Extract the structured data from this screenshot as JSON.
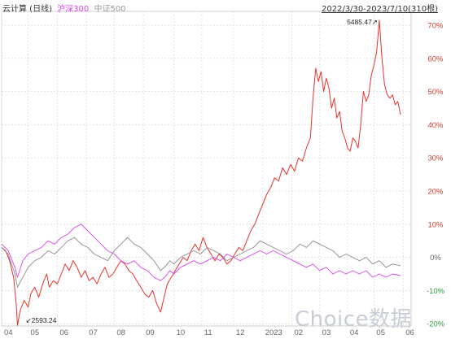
{
  "legend": {
    "stock": "云计算 (日线)",
    "series2": "沪深300",
    "series3": "中证500"
  },
  "date_range": "2022/3/30-2023/7/10(310根)",
  "watermark": "Choice数据",
  "colors": {
    "stock": "#e8332a",
    "hs300": "#d946ef",
    "zz500": "#8c8c8c",
    "grid": "#e3e3e3",
    "axis_text": "#666666",
    "positive_tick": "#d33c2d",
    "negative_tick": "#2f9b3a"
  },
  "chart_data": {
    "type": "line",
    "title": "",
    "xlabel": "",
    "ylabel": "",
    "x_ticks": [
      "04",
      "05",
      "06",
      "07",
      "08",
      "09",
      "10",
      "11",
      "12",
      "2023",
      "02",
      "03",
      "04",
      "05",
      "06"
    ],
    "y_ticks": [
      "70%",
      "60%",
      "50%",
      "40%",
      "30%",
      "20%",
      "10%",
      "0%",
      "-10%",
      "-20%"
    ],
    "ylim": [
      -20,
      72
    ],
    "x_unit": "trading day index (0-309)",
    "annotations": [
      {
        "label": "2593.24",
        "x": 12,
        "y": -20.5
      },
      {
        "label": "5485.47",
        "x": 285,
        "y": 71.5
      }
    ],
    "series": [
      {
        "key": "stock",
        "points": [
          [
            0,
            3
          ],
          [
            3,
            2
          ],
          [
            6,
            -1
          ],
          [
            9,
            -6
          ],
          [
            11,
            -14
          ],
          [
            12,
            -20.5
          ],
          [
            14,
            -16
          ],
          [
            17,
            -13
          ],
          [
            20,
            -15
          ],
          [
            22,
            -11
          ],
          [
            25,
            -9
          ],
          [
            28,
            -12
          ],
          [
            31,
            -8
          ],
          [
            34,
            -5
          ],
          [
            36,
            -9
          ],
          [
            39,
            -7
          ],
          [
            42,
            -8
          ],
          [
            45,
            -5
          ],
          [
            48,
            -2
          ],
          [
            51,
            -4
          ],
          [
            54,
            -1
          ],
          [
            57,
            -3
          ],
          [
            60,
            -6
          ],
          [
            63,
            -4
          ],
          [
            66,
            -7
          ],
          [
            69,
            -6
          ],
          [
            72,
            -8
          ],
          [
            75,
            -5
          ],
          [
            78,
            -3
          ],
          [
            81,
            -6
          ],
          [
            84,
            -5
          ],
          [
            87,
            -3
          ],
          [
            90,
            -1
          ],
          [
            93,
            -2
          ],
          [
            96,
            -4
          ],
          [
            99,
            -5
          ],
          [
            102,
            -7
          ],
          [
            105,
            -9
          ],
          [
            108,
            -11
          ],
          [
            111,
            -12
          ],
          [
            114,
            -10
          ],
          [
            117,
            -14
          ],
          [
            120,
            -16.5
          ],
          [
            122,
            -13
          ],
          [
            125,
            -8
          ],
          [
            128,
            -6
          ],
          [
            131,
            -4
          ],
          [
            134,
            -2
          ],
          [
            137,
            0
          ],
          [
            140,
            -1
          ],
          [
            143,
            2
          ],
          [
            146,
            4
          ],
          [
            149,
            2
          ],
          [
            152,
            6
          ],
          [
            155,
            3
          ],
          [
            158,
            1
          ],
          [
            161,
            -1
          ],
          [
            164,
            1
          ],
          [
            167,
            0
          ],
          [
            170,
            -2
          ],
          [
            173,
            -1
          ],
          [
            176,
            1
          ],
          [
            179,
            3
          ],
          [
            182,
            2
          ],
          [
            185,
            5
          ],
          [
            188,
            8
          ],
          [
            191,
            10
          ],
          [
            194,
            13
          ],
          [
            197,
            16
          ],
          [
            200,
            19
          ],
          [
            203,
            21
          ],
          [
            206,
            24
          ],
          [
            209,
            23
          ],
          [
            212,
            27
          ],
          [
            215,
            25
          ],
          [
            218,
            28
          ],
          [
            221,
            26
          ],
          [
            224,
            30
          ],
          [
            227,
            29
          ],
          [
            230,
            33
          ],
          [
            233,
            36
          ],
          [
            235,
            48
          ],
          [
            237,
            57
          ],
          [
            239,
            53
          ],
          [
            241,
            56
          ],
          [
            243,
            50
          ],
          [
            245,
            54
          ],
          [
            247,
            51
          ],
          [
            249,
            45
          ],
          [
            251,
            48
          ],
          [
            253,
            42
          ],
          [
            255,
            44
          ],
          [
            257,
            38
          ],
          [
            259,
            36
          ],
          [
            261,
            33
          ],
          [
            263,
            32
          ],
          [
            265,
            36
          ],
          [
            267,
            35
          ],
          [
            269,
            33
          ],
          [
            271,
            40
          ],
          [
            273,
            50
          ],
          [
            275,
            47
          ],
          [
            277,
            49
          ],
          [
            279,
            55
          ],
          [
            281,
            58
          ],
          [
            283,
            62
          ],
          [
            285,
            71.5
          ],
          [
            287,
            60
          ],
          [
            289,
            52
          ],
          [
            291,
            49
          ],
          [
            293,
            48
          ],
          [
            295,
            49
          ],
          [
            297,
            46
          ],
          [
            299,
            47
          ],
          [
            301,
            43
          ]
        ]
      },
      {
        "key": "hs300",
        "points": [
          [
            0,
            4
          ],
          [
            5,
            2
          ],
          [
            10,
            -3
          ],
          [
            12,
            -6
          ],
          [
            16,
            -1
          ],
          [
            20,
            1
          ],
          [
            25,
            2
          ],
          [
            30,
            3
          ],
          [
            35,
            5
          ],
          [
            40,
            4
          ],
          [
            45,
            6
          ],
          [
            50,
            7
          ],
          [
            55,
            9
          ],
          [
            60,
            10
          ],
          [
            65,
            8
          ],
          [
            70,
            6
          ],
          [
            75,
            4
          ],
          [
            80,
            2
          ],
          [
            85,
            1
          ],
          [
            90,
            -1
          ],
          [
            95,
            -2
          ],
          [
            100,
            -1
          ],
          [
            105,
            -3
          ],
          [
            110,
            -4
          ],
          [
            115,
            -6
          ],
          [
            120,
            -7
          ],
          [
            123,
            -6
          ],
          [
            127,
            -4
          ],
          [
            130,
            -5
          ],
          [
            135,
            -3
          ],
          [
            140,
            -2
          ],
          [
            145,
            -1
          ],
          [
            150,
            -2
          ],
          [
            155,
            -1
          ],
          [
            160,
            0
          ],
          [
            165,
            -1
          ],
          [
            170,
            1
          ],
          [
            175,
            0
          ],
          [
            180,
            -1
          ],
          [
            185,
            0
          ],
          [
            190,
            1
          ],
          [
            195,
            2
          ],
          [
            200,
            1
          ],
          [
            205,
            2
          ],
          [
            210,
            1
          ],
          [
            215,
            0
          ],
          [
            220,
            -1
          ],
          [
            225,
            -2
          ],
          [
            230,
            -3
          ],
          [
            235,
            -2
          ],
          [
            240,
            -4
          ],
          [
            245,
            -3
          ],
          [
            250,
            -5
          ],
          [
            255,
            -4
          ],
          [
            260,
            -5
          ],
          [
            265,
            -4
          ],
          [
            270,
            -5
          ],
          [
            275,
            -4
          ],
          [
            280,
            -6
          ],
          [
            285,
            -5
          ],
          [
            290,
            -6
          ],
          [
            295,
            -5
          ],
          [
            301,
            -5.5
          ]
        ]
      },
      {
        "key": "zz500",
        "points": [
          [
            0,
            3
          ],
          [
            5,
            1
          ],
          [
            10,
            -5
          ],
          [
            12,
            -9
          ],
          [
            16,
            -6
          ],
          [
            20,
            -3
          ],
          [
            25,
            -1
          ],
          [
            30,
            0
          ],
          [
            35,
            2
          ],
          [
            40,
            1
          ],
          [
            45,
            3
          ],
          [
            50,
            5
          ],
          [
            55,
            6
          ],
          [
            60,
            4
          ],
          [
            65,
            3
          ],
          [
            70,
            1
          ],
          [
            75,
            0
          ],
          [
            80,
            -1
          ],
          [
            85,
            2
          ],
          [
            90,
            4
          ],
          [
            95,
            6
          ],
          [
            100,
            4
          ],
          [
            105,
            3
          ],
          [
            110,
            1
          ],
          [
            115,
            -1
          ],
          [
            120,
            -4
          ],
          [
            123,
            -3
          ],
          [
            127,
            -1
          ],
          [
            130,
            -2
          ],
          [
            135,
            0
          ],
          [
            140,
            1
          ],
          [
            145,
            2
          ],
          [
            150,
            1
          ],
          [
            155,
            3
          ],
          [
            160,
            2
          ],
          [
            165,
            1
          ],
          [
            170,
            -1
          ],
          [
            175,
            0
          ],
          [
            180,
            1
          ],
          [
            185,
            2
          ],
          [
            190,
            3
          ],
          [
            195,
            5
          ],
          [
            200,
            4
          ],
          [
            205,
            3
          ],
          [
            210,
            2
          ],
          [
            215,
            1
          ],
          [
            220,
            2
          ],
          [
            225,
            4
          ],
          [
            230,
            3
          ],
          [
            235,
            5
          ],
          [
            240,
            4
          ],
          [
            245,
            3
          ],
          [
            250,
            2
          ],
          [
            255,
            0
          ],
          [
            260,
            1
          ],
          [
            265,
            0
          ],
          [
            270,
            -1
          ],
          [
            275,
            0
          ],
          [
            280,
            -2
          ],
          [
            285,
            -1
          ],
          [
            290,
            -3
          ],
          [
            295,
            -2
          ],
          [
            301,
            -2.5
          ]
        ]
      }
    ]
  }
}
